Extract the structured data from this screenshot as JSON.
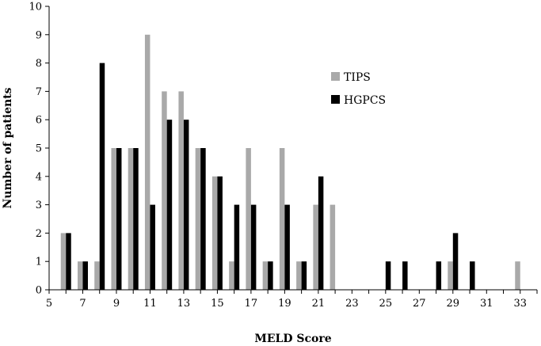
{
  "chart_data": {
    "type": "bar",
    "x": [
      6,
      7,
      8,
      9,
      10,
      11,
      12,
      13,
      14,
      15,
      16,
      17,
      18,
      19,
      20,
      21,
      22,
      23,
      24,
      25,
      26,
      27,
      28,
      29,
      30,
      31,
      32,
      33
    ],
    "series": [
      {
        "name": "TIPS",
        "color": "#a9a9a9",
        "values": [
          2,
          1,
          1,
          5,
          5,
          9,
          7,
          7,
          5,
          4,
          1,
          5,
          1,
          5,
          1,
          3,
          3,
          0,
          0,
          0,
          0,
          0,
          0,
          1,
          0,
          0,
          0,
          1
        ]
      },
      {
        "name": "HGPCS",
        "color": "#000000",
        "values": [
          2,
          1,
          8,
          5,
          5,
          3,
          6,
          6,
          5,
          4,
          3,
          3,
          1,
          3,
          1,
          4,
          0,
          0,
          0,
          1,
          1,
          0,
          1,
          2,
          1,
          0,
          0,
          0
        ]
      }
    ],
    "xticks": [
      "5",
      "7",
      "9",
      "11",
      "13",
      "15",
      "17",
      "19",
      "21",
      "23",
      "25",
      "27",
      "29",
      "31",
      "33"
    ],
    "yticks": [
      "0",
      "1",
      "2",
      "3",
      "4",
      "5",
      "6",
      "7",
      "8",
      "9",
      "10"
    ],
    "xlim": [
      5,
      34
    ],
    "ylim": [
      0,
      10
    ],
    "xlabel": "MELD Score",
    "ylabel": "Number of patients",
    "legend_position": "upper-right",
    "grid": false
  }
}
